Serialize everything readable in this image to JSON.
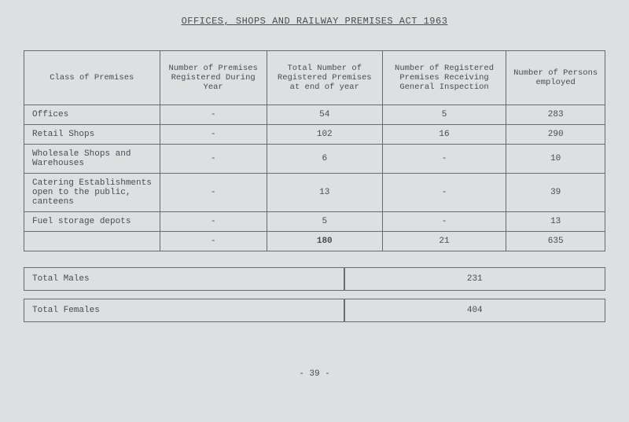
{
  "title": "OFFICES, SHOPS AND RAILWAY PREMISES ACT 1963",
  "headers": {
    "h1": "Class of Premises",
    "h2": "Number of Premises Registered During Year",
    "h3": "Total Number of Registered Premises at end of year",
    "h4": "Number of Registered Premises Receiving General Inspection",
    "h5": "Number of Persons employed"
  },
  "rows": [
    {
      "label": "Offices",
      "c2": "-",
      "c3": "54",
      "c4": "5",
      "c5": "283"
    },
    {
      "label": "Retail Shops",
      "c2": "-",
      "c3": "102",
      "c4": "16",
      "c5": "290"
    },
    {
      "label": "Wholesale Shops and Warehouses",
      "c2": "-",
      "c3": "6",
      "c4": "-",
      "c5": "10"
    },
    {
      "label": "Catering Establishments open to the public, canteens",
      "c2": "-",
      "c3": "13",
      "c4": "-",
      "c5": "39"
    },
    {
      "label": "Fuel storage depots",
      "c2": "-",
      "c3": "5",
      "c4": "-",
      "c5": "13"
    }
  ],
  "totals": {
    "label": "",
    "c2": "-",
    "c3": "180",
    "c4": "21",
    "c5": "635"
  },
  "summary": [
    {
      "label": "Total Males",
      "value": "231"
    },
    {
      "label": "Total Females",
      "value": "404"
    }
  ],
  "page": "- 39 -"
}
